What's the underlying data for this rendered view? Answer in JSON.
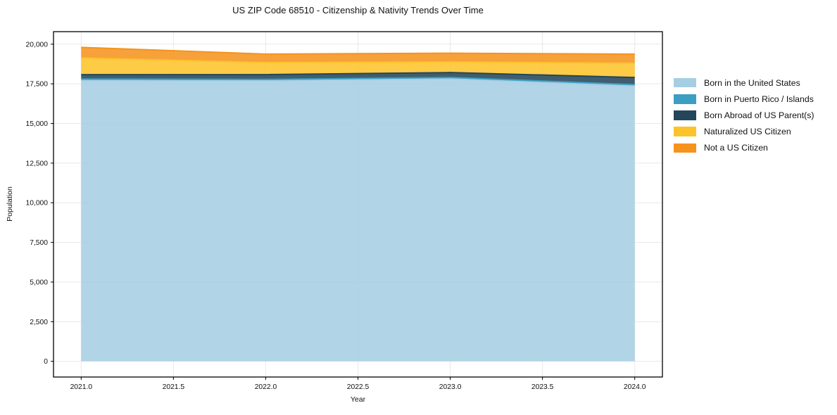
{
  "chart_data": {
    "type": "area",
    "stacked": true,
    "title": "US ZIP Code 68510 - Citizenship & Nativity Trends Over Time",
    "xlabel": "Year",
    "ylabel": "Population",
    "x": [
      2021,
      2022,
      2023,
      2024
    ],
    "series": [
      {
        "name": "Born in the United States",
        "color": "#a6cee3",
        "values": [
          17700,
          17690,
          17810,
          17360
        ]
      },
      {
        "name": "Born in Puerto Rico / Islands",
        "color": "#3c9fc2",
        "values": [
          100,
          90,
          90,
          90
        ]
      },
      {
        "name": "Born Abroad of US Parent(s)",
        "color": "#24465a",
        "values": [
          280,
          300,
          310,
          450
        ]
      },
      {
        "name": "Naturalized US Citizen",
        "color": "#fdc32b",
        "values": [
          1050,
          760,
          670,
          895
        ]
      },
      {
        "name": "Not a US Citizen",
        "color": "#f6931e",
        "values": [
          670,
          535,
          550,
          580
        ]
      }
    ],
    "totals": [
      19800,
      19375,
      19430,
      19375
    ],
    "xlim": [
      2020.85,
      2024.15
    ],
    "ylim": [
      -990,
      20790
    ],
    "xticks": {
      "values": [
        2021,
        2021.5,
        2022,
        2022.5,
        2023,
        2023.5,
        2024
      ],
      "labels": [
        "2021.0",
        "2021.5",
        "2022.0",
        "2022.5",
        "2023.0",
        "2023.5",
        "2024.0"
      ]
    },
    "yticks": {
      "values": [
        0,
        2500,
        5000,
        7500,
        10000,
        12500,
        15000,
        17500,
        20000
      ],
      "labels": [
        "0",
        "2,500",
        "5,000",
        "7,500",
        "10,000",
        "12,500",
        "15,000",
        "17,500",
        "20,000"
      ]
    },
    "grid": true,
    "grid_color": "#e8e8e8",
    "legend_position": "right",
    "fill_opacity": 0.87,
    "border_color": "#000000"
  }
}
